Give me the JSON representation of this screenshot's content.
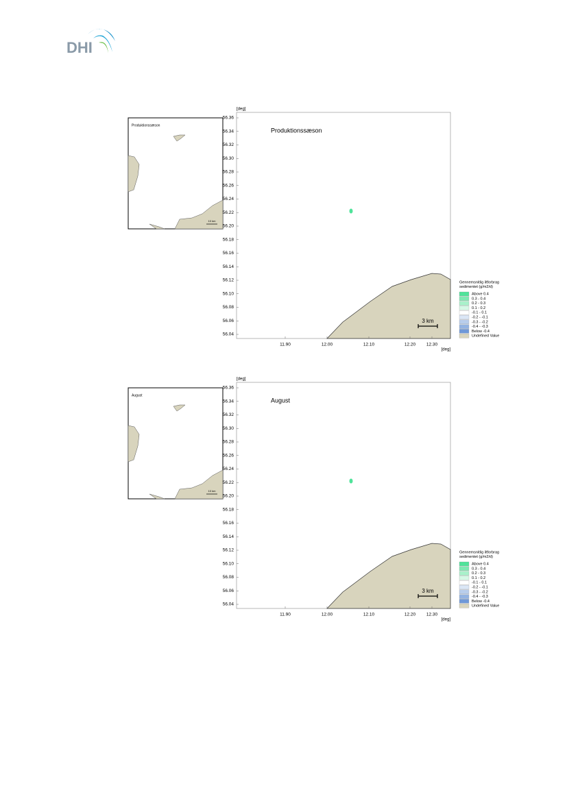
{
  "logo": {
    "text": "DHI"
  },
  "figures": [
    {
      "inset": {
        "title": "Produktionssæson",
        "scale": "10 km"
      },
      "map": {
        "title": "Produktionssæson",
        "y_unit": "[deg]",
        "x_unit": "[deg]",
        "yticks": [
          "56.36",
          "56.34",
          "56.32",
          "56.30",
          "56.28",
          "56.26",
          "56.24",
          "56.22",
          "56.20",
          "56.18",
          "56.16",
          "56.14",
          "56.12",
          "56.10",
          "56.08",
          "56.06",
          "56.04"
        ],
        "xticks": [
          "11.90",
          "12.00",
          "12.10",
          "12.20",
          "12.30"
        ],
        "scale": "3 km",
        "legend": {
          "title": [
            "Gennemsnitlig iltforbrag",
            "sedimentet (g/m2/d)"
          ],
          "items": [
            {
              "label": "Above  0.4",
              "color": "#4fe39a"
            },
            {
              "label": "0.3 -  0.4",
              "color": "#7eeab3"
            },
            {
              "label": "0.2 -  0.3",
              "color": "#a9f1cb"
            },
            {
              "label": "0.1 -  0.2",
              "color": "#d6f8e6"
            },
            {
              "label": "-0.1 -  0.1",
              "color": "#ffffff"
            },
            {
              "label": "-0.2 - -0.1",
              "color": "#dbe6f5"
            },
            {
              "label": "-0.3 - -0.2",
              "color": "#b8cdec"
            },
            {
              "label": "-0.4 - -0.3",
              "color": "#93b3e2"
            },
            {
              "label": "Below -0.4",
              "color": "#6f98d8"
            },
            {
              "label": "Undefined Value",
              "color": "#d8d4bd"
            }
          ]
        }
      }
    },
    {
      "inset": {
        "title": "August",
        "scale": "10 km"
      },
      "map": {
        "title": "August",
        "y_unit": "[deg]",
        "x_unit": "[deg]",
        "yticks": [
          "56.36",
          "56.34",
          "56.32",
          "56.30",
          "56.28",
          "56.26",
          "56.24",
          "56.22",
          "56.20",
          "56.18",
          "56.16",
          "56.14",
          "56.12",
          "56.10",
          "56.08",
          "56.06",
          "56.04"
        ],
        "xticks": [
          "11.90",
          "12.00",
          "12.10",
          "12.20",
          "12.30"
        ],
        "scale": "3 km",
        "legend": {
          "title": [
            "Gennemsnitlig iltforbrag",
            "sedimentet (g/m2/d)"
          ],
          "items": [
            {
              "label": "Above  0.4",
              "color": "#4fe39a"
            },
            {
              "label": "0.3 -  0.4",
              "color": "#7eeab3"
            },
            {
              "label": "0.2 -  0.3",
              "color": "#a9f1cb"
            },
            {
              "label": "0.1 -  0.2",
              "color": "#d6f8e6"
            },
            {
              "label": "-0.1 -  0.1",
              "color": "#ffffff"
            },
            {
              "label": "-0.2 - -0.1",
              "color": "#dbe6f5"
            },
            {
              "label": "-0.3 - -0.2",
              "color": "#b8cdec"
            },
            {
              "label": "-0.4 - -0.3",
              "color": "#93b3e2"
            },
            {
              "label": "Below -0.4",
              "color": "#6f98d8"
            },
            {
              "label": "Undefined Value",
              "color": "#d8d4bd"
            }
          ]
        }
      }
    }
  ]
}
